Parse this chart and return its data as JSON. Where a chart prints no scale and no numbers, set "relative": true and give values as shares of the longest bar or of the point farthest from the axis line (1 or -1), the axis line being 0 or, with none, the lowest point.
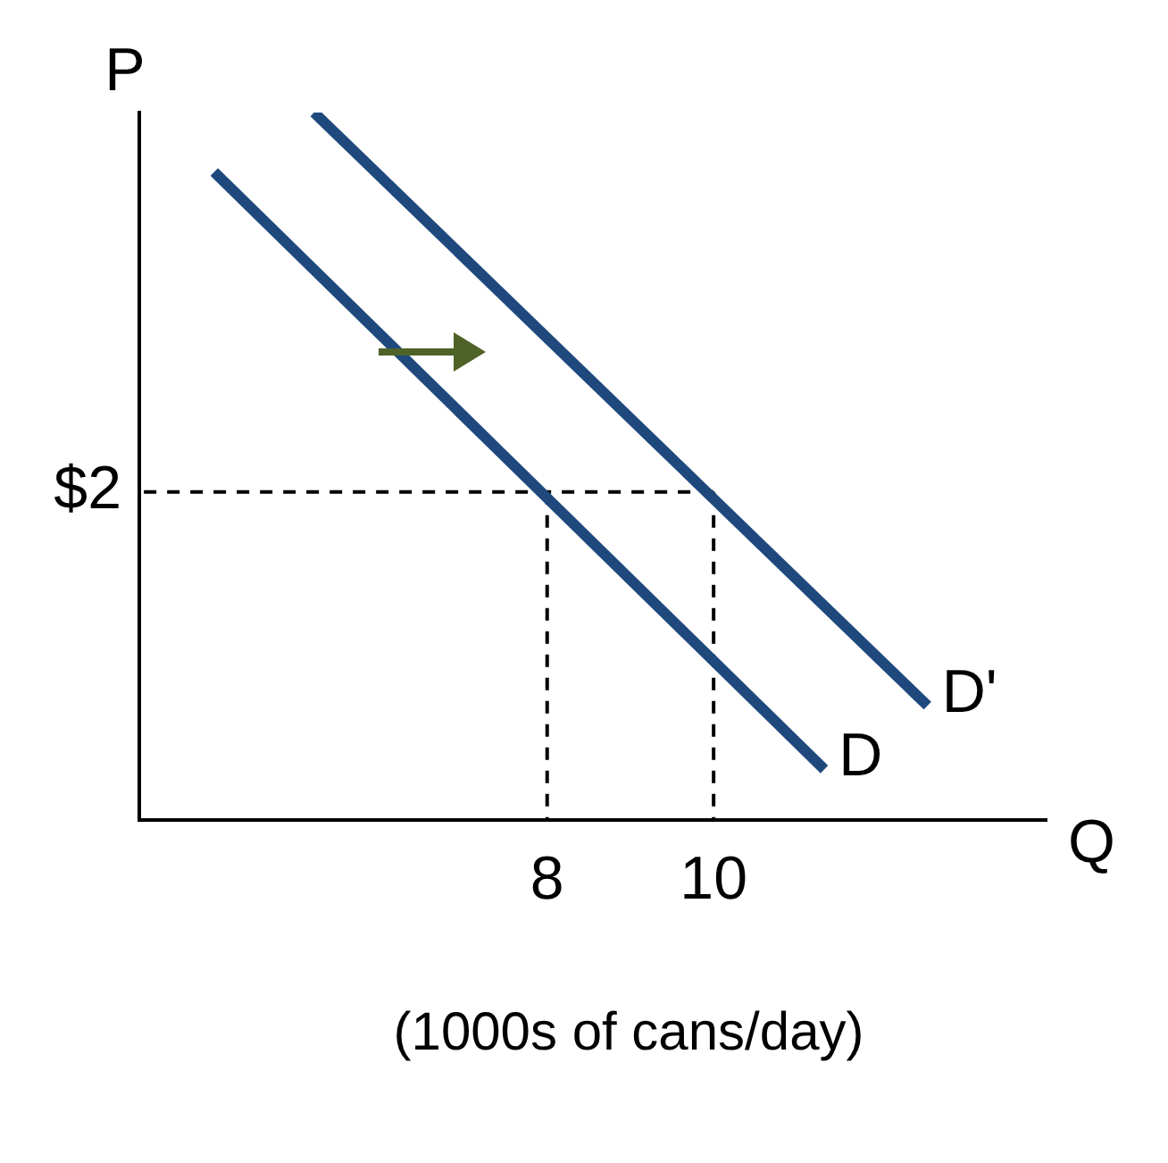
{
  "chart_data": {
    "type": "line",
    "relative": true,
    "xlabel": "Q",
    "ylabel": "P",
    "annotations": [
      "$2",
      "(1000s of cans/day)"
    ],
    "xlim": [
      3.1,
      14
    ],
    "xticks": [
      8,
      10
    ],
    "grid": false,
    "legend": false,
    "marker": "none",
    "series": [
      {
        "name": "D",
        "color": "#1f497d",
        "x": [
          4.0,
          11.33
        ],
        "values": [
          0.916,
          0.072
        ],
        "line_style": "solid"
      },
      {
        "name": "D'",
        "color": "#1f497d",
        "x": [
          5.2,
          12.57
        ],
        "values": [
          1,
          0.162
        ],
        "line_style": "solid"
      },
      {
        "color": "#000000",
        "x": [
          10,
          3.1
        ],
        "values": [
          0.464,
          0.464
        ],
        "line_style": "dashed"
      },
      {
        "color": "#000000",
        "x": [
          8,
          8
        ],
        "values": [
          0.464,
          0
        ],
        "line_style": "dashed"
      },
      {
        "color": "#000000",
        "x": [
          10,
          10
        ],
        "values": [
          0.464,
          0
        ],
        "line_style": "dashed"
      }
    ]
  }
}
